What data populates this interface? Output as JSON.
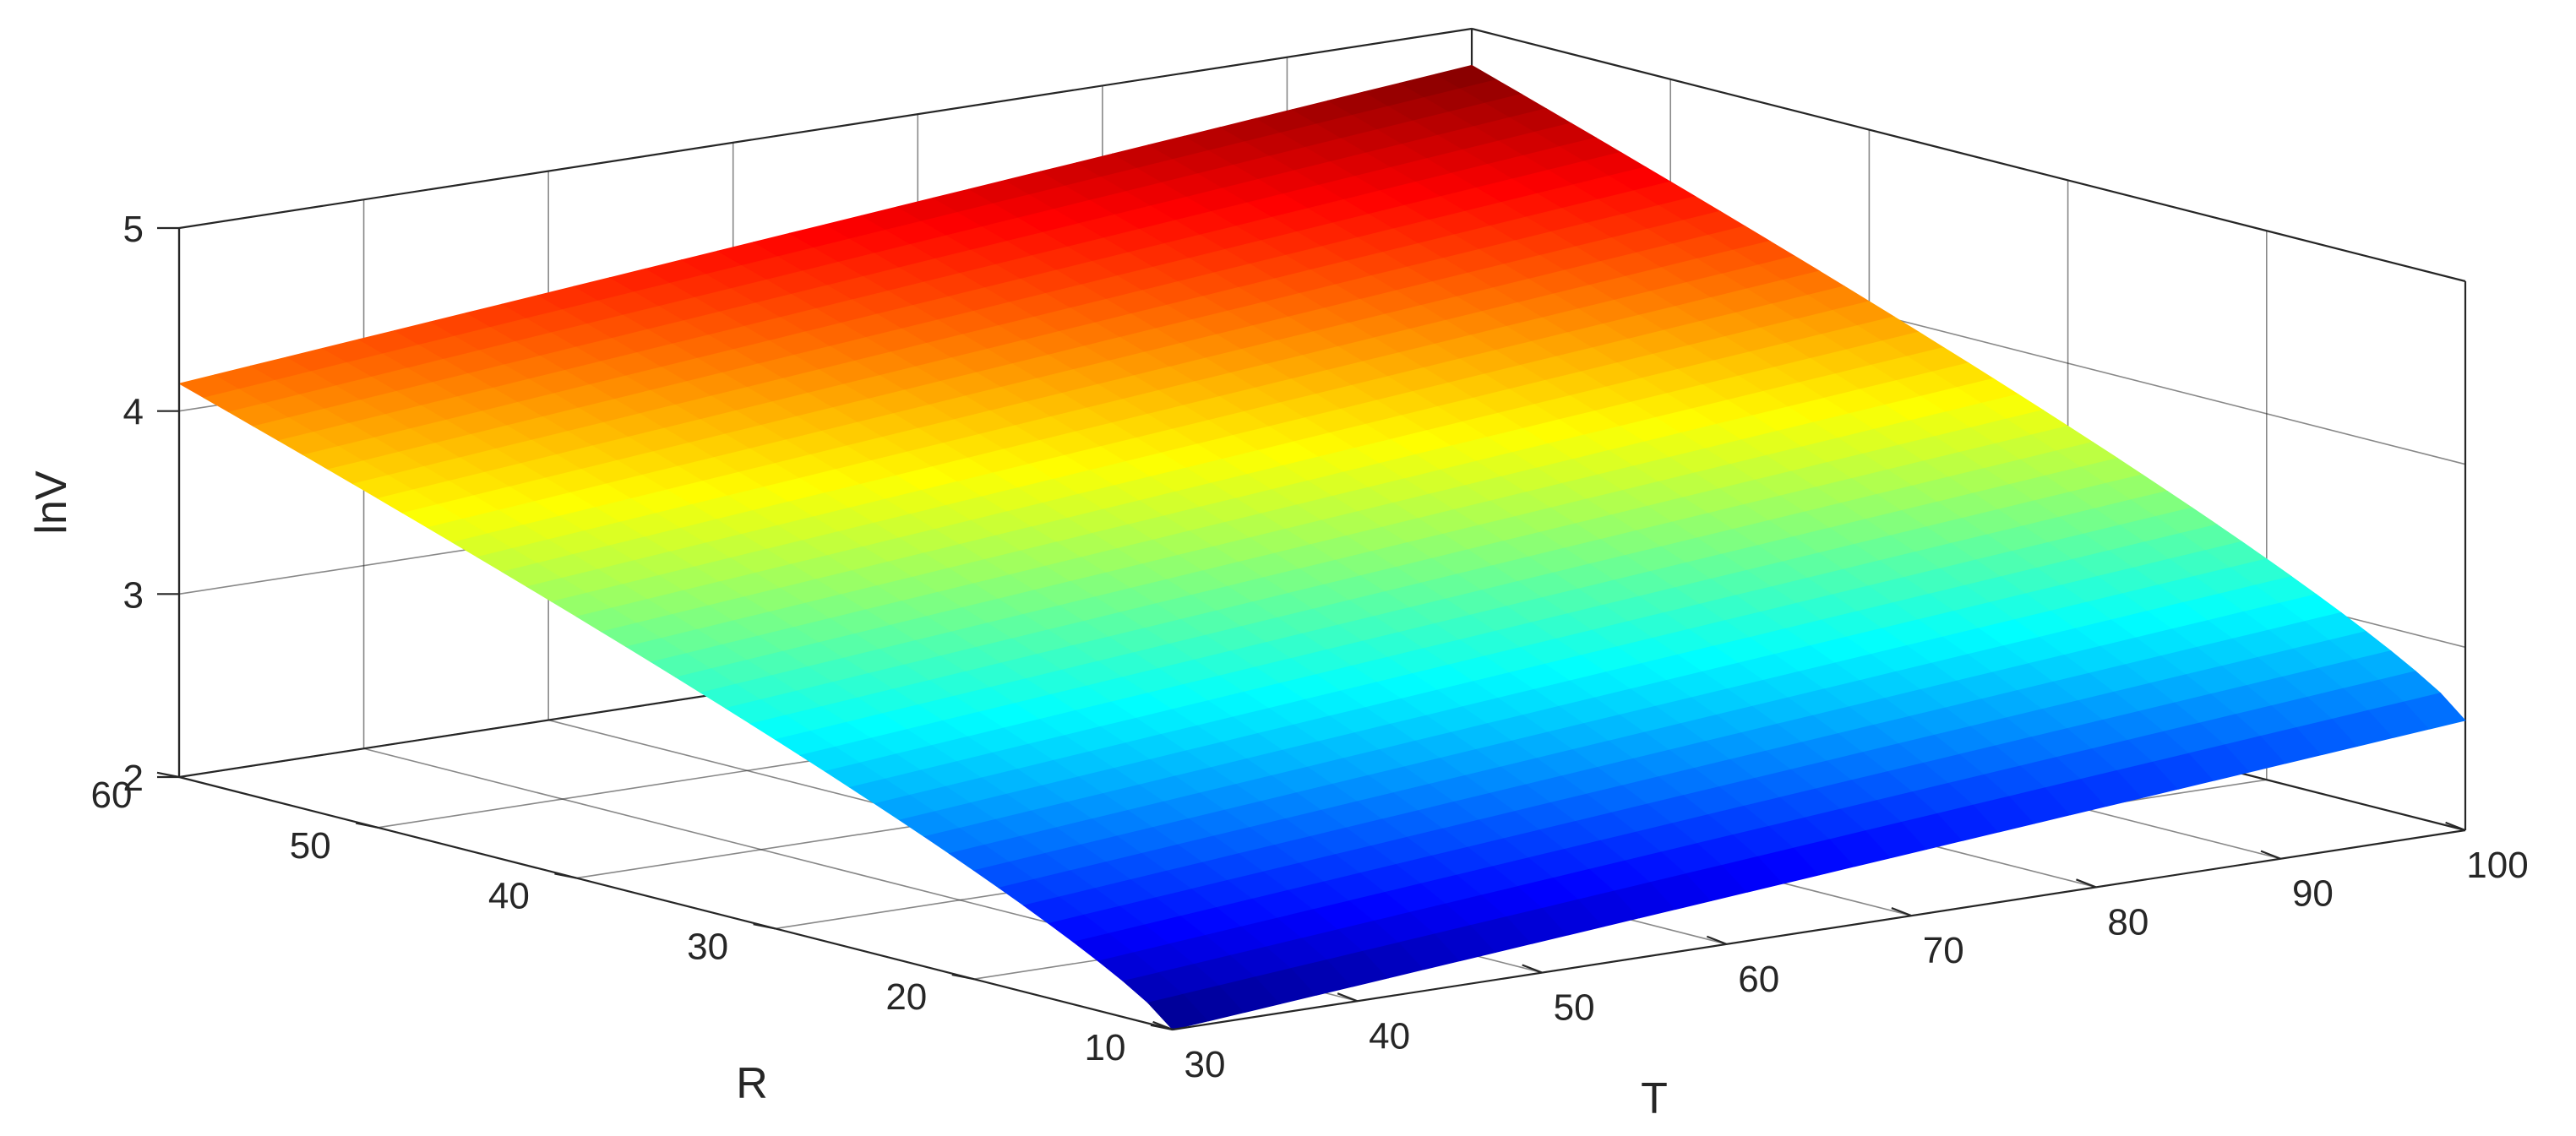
{
  "chart_data": {
    "type": "surface",
    "xlabel": "T",
    "ylabel": "R",
    "zlabel": "lnV",
    "xlim": [
      30,
      100
    ],
    "ylim": [
      10,
      60
    ],
    "zlim": [
      2,
      5
    ],
    "x_ticks": [
      "30",
      "40",
      "50",
      "60",
      "70",
      "80",
      "90",
      "100"
    ],
    "y_ticks": [
      "10",
      "20",
      "30",
      "40",
      "50",
      "60"
    ],
    "z_ticks": [
      "2",
      "3",
      "4",
      "5"
    ],
    "colormap": "jet",
    "grid": true,
    "surface_corners": [
      {
        "T": 30,
        "R": 10,
        "lnV": 2.0
      },
      {
        "T": 100,
        "R": 10,
        "lnV": 2.6
      },
      {
        "T": 30,
        "R": 60,
        "lnV": 4.15
      },
      {
        "T": 100,
        "R": 60,
        "lnV": 4.8
      }
    ]
  }
}
